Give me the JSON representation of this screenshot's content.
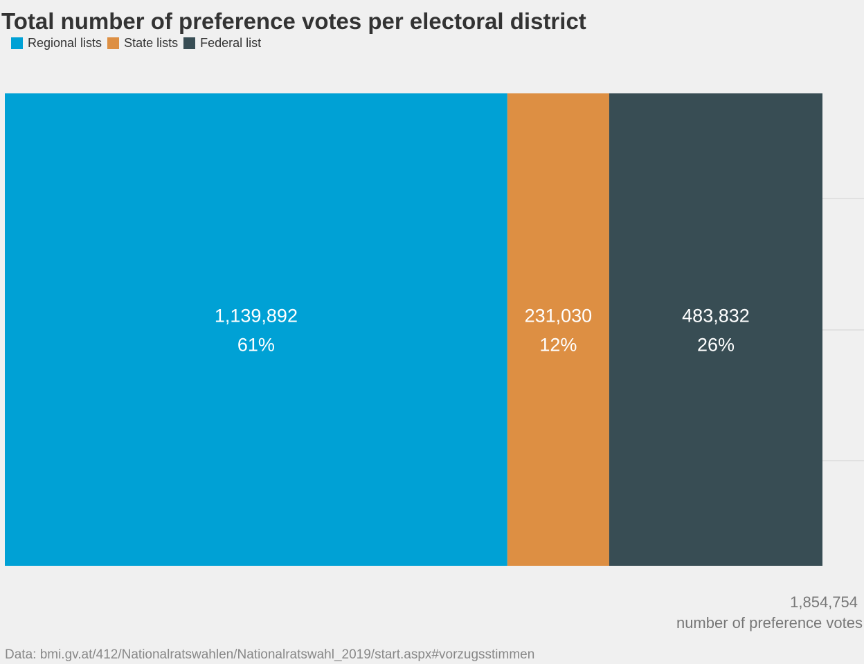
{
  "chart_data": {
    "type": "bar",
    "stacked": true,
    "orientation": "horizontal",
    "title": "Total number of preference votes per electoral district",
    "categories": [
      "Regional lists",
      "State lists",
      "Federal list"
    ],
    "series": [
      {
        "name": "Regional lists",
        "value": 1139892,
        "value_label": "1,139,892",
        "percent_label": "61%",
        "color": "#00a1d5"
      },
      {
        "name": "State lists",
        "value": 231030,
        "value_label": "231,030",
        "percent_label": "12%",
        "color": "#dd8f43"
      },
      {
        "name": "Federal list",
        "value": 483832,
        "value_label": "483,832",
        "percent_label": "26%",
        "color": "#384d54"
      }
    ],
    "total": 1854754,
    "total_label": "1,854,754",
    "xlabel": "number of preference votes",
    "grid": true,
    "legend_position": "top-left",
    "source": "Data: bmi.gv.at/412/Nationalratswahlen/Nationalratswahl_2019/start.aspx#vorzugsstimmen"
  },
  "colors": {
    "background": "#f0f0f0",
    "gridline": "#d2d2d2",
    "bar_text": "#ffffff"
  }
}
